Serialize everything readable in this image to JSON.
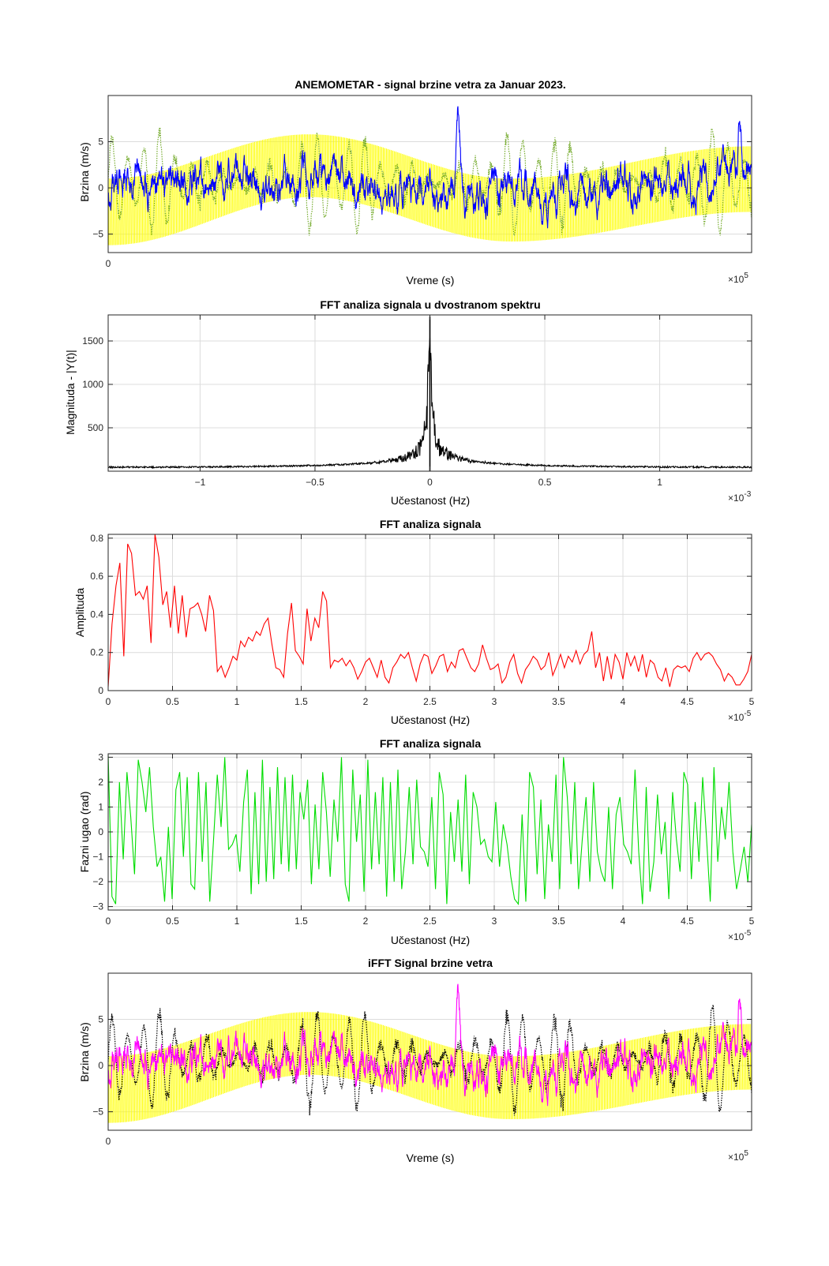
{
  "chart_data": [
    {
      "type": "line",
      "title": "ANEMOMETAR - signal brzine vetra za Januar 2023.",
      "xlabel": "Vreme (s)",
      "ylabel": "Brzina (m/s)",
      "xlim": [
        0,
        160000.0
      ],
      "ylim": [
        -7,
        10
      ],
      "xticks": [
        0,
        5,
        10,
        15
      ],
      "yticks": [
        -5,
        0,
        5
      ],
      "x_exponent": "5",
      "grid": true,
      "series": [
        {
          "role": "envelope",
          "color": "#ffff00",
          "x": [
            0,
            50000.0,
            100000.0,
            160000.0
          ],
          "upper": [
            1,
            5.8,
            1,
            4.5
          ],
          "lower": [
            -6.2,
            -1,
            -5.8,
            -2.6
          ]
        },
        {
          "role": "dotted",
          "color": "#77ac30",
          "style": "dotted",
          "amplitude": 6
        },
        {
          "role": "main",
          "color": "#0000ff",
          "peaks": [
            [
              87000.0,
              9.8
            ],
            [
              157000.0,
              9.5
            ]
          ]
        }
      ]
    },
    {
      "type": "line",
      "title": "FFT analiza signala u dvostranom spektru",
      "xlabel": "Učestanost (Hz)",
      "ylabel": "Magnituda - |Y(t)|",
      "xlim": [
        -0.0014,
        0.0014
      ],
      "ylim": [
        0,
        1800
      ],
      "xticks": [
        -1,
        -0.5,
        0,
        0.5,
        1
      ],
      "yticks": [
        500,
        1000,
        1500
      ],
      "x_exponent": "-3",
      "grid": true,
      "series": [
        {
          "color": "#000000",
          "peak": 1780,
          "baseline": 35
        }
      ]
    },
    {
      "type": "line",
      "title": "FFT analiza signala",
      "xlabel": "Učestanost (Hz)",
      "ylabel": "Amplituda",
      "xlim": [
        0,
        5e-05
      ],
      "ylim": [
        0,
        0.82
      ],
      "xticks": [
        0,
        0.5,
        1,
        1.5,
        2,
        2.5,
        3,
        3.5,
        4,
        4.5,
        5
      ],
      "yticks": [
        0,
        0.2,
        0.4,
        0.6,
        0.8
      ],
      "x_exponent": "-5",
      "grid": true,
      "series": [
        {
          "color": "#ff0000",
          "y": [
            0.02,
            0.35,
            0.55,
            0.67,
            0.18,
            0.77,
            0.72,
            0.5,
            0.52,
            0.48,
            0.55,
            0.25,
            0.82,
            0.7,
            0.45,
            0.52,
            0.33,
            0.55,
            0.3,
            0.5,
            0.28,
            0.43,
            0.44,
            0.46,
            0.4,
            0.31,
            0.5,
            0.42,
            0.1,
            0.13,
            0.07,
            0.12,
            0.18,
            0.16,
            0.26,
            0.23,
            0.28,
            0.26,
            0.31,
            0.29,
            0.35,
            0.38,
            0.24,
            0.12,
            0.11,
            0.07,
            0.3,
            0.46,
            0.21,
            0.18,
            0.14,
            0.43,
            0.26,
            0.38,
            0.33,
            0.52,
            0.47,
            0.12,
            0.16,
            0.15,
            0.17,
            0.13,
            0.16,
            0.12,
            0.06,
            0.1,
            0.15,
            0.17,
            0.12,
            0.07,
            0.16,
            0.07,
            0.04,
            0.12,
            0.15,
            0.19,
            0.17,
            0.2,
            0.12,
            0.05,
            0.14,
            0.19,
            0.18,
            0.09,
            0.13,
            0.18,
            0.19,
            0.1,
            0.15,
            0.12,
            0.21,
            0.22,
            0.17,
            0.12,
            0.1,
            0.14,
            0.24,
            0.17,
            0.11,
            0.12,
            0.14,
            0.04,
            0.07,
            0.15,
            0.19,
            0.09,
            0.04,
            0.11,
            0.14,
            0.18,
            0.16,
            0.11,
            0.13,
            0.2,
            0.08,
            0.13,
            0.19,
            0.12,
            0.18,
            0.15,
            0.21,
            0.14,
            0.19,
            0.21,
            0.31,
            0.12,
            0.2,
            0.05,
            0.18,
            0.06,
            0.19,
            0.15,
            0.06,
            0.2,
            0.13,
            0.18,
            0.1,
            0.19,
            0.07,
            0.16,
            0.14,
            0.07,
            0.05,
            0.12,
            0.02,
            0.11,
            0.13,
            0.12,
            0.13,
            0.1,
            0.17,
            0.2,
            0.16,
            0.19,
            0.2,
            0.18,
            0.14,
            0.11,
            0.05,
            0.09,
            0.07,
            0.03,
            0.03,
            0.06,
            0.1,
            0.19
          ]
        }
      ]
    },
    {
      "type": "line",
      "title": "FFT analiza signala",
      "xlabel": "Učestanost (Hz)",
      "ylabel": "Fazni ugao (rad)",
      "xlim": [
        0,
        5e-05
      ],
      "ylim": [
        -3.14,
        3.14
      ],
      "xticks": [
        0,
        0.5,
        1,
        1.5,
        2,
        2.5,
        3,
        3.5,
        4,
        4.5,
        5
      ],
      "yticks": [
        -3,
        -2,
        -1,
        0,
        1,
        2,
        3
      ],
      "x_exponent": "-5",
      "grid": true,
      "series": [
        {
          "color": "#00dd00",
          "y": [
            3.1,
            -2.6,
            -2.9,
            2.0,
            -1.1,
            2.4,
            0.6,
            -1.7,
            2.9,
            2.0,
            0.8,
            2.6,
            0.2,
            -1.4,
            -1.0,
            -2.8,
            0.2,
            -2.7,
            1.7,
            2.4,
            -1.0,
            2.2,
            -2.1,
            -2.3,
            2.4,
            -1.2,
            2.0,
            -2.8,
            -0.3,
            2.3,
            0.2,
            3.0,
            -0.7,
            -0.5,
            -0.1,
            -1.6,
            1.2,
            2.5,
            -2.5,
            1.6,
            -2.1,
            2.9,
            -2.0,
            1.8,
            -1.9,
            2.6,
            -1.3,
            2.2,
            -1.6,
            2.3,
            -1.5,
            1.6,
            0.5,
            2.1,
            -2.1,
            1.1,
            -1.5,
            2.4,
            0.8,
            -1.8,
            1.3,
            -0.4,
            3.0,
            -2.1,
            -2.8,
            2.5,
            -0.4,
            1.5,
            -2.4,
            2.9,
            -1.5,
            1.6,
            -1.3,
            2.2,
            -2.6,
            2.0,
            -2.0,
            2.5,
            -2.3,
            -0.8,
            1.8,
            -1.3,
            2.1,
            -0.6,
            -0.8,
            -1.4,
            1.4,
            -2.3,
            2.4,
            1.5,
            -2.9,
            0.8,
            -1.2,
            1.3,
            -1.6,
            2.3,
            -2.1,
            1.6,
            1.0,
            -0.5,
            -0.3,
            -1.0,
            -1.2,
            1.2,
            -1.4,
            0.3,
            -0.5,
            -1.8,
            -2.7,
            -2.9,
            0.7,
            -2.8,
            2.4,
            1.8,
            -1.7,
            1.3,
            -2.7,
            0.3,
            -1.2,
            2.3,
            -2.3,
            3.0,
            1.4,
            -1.3,
            2.0,
            -2.3,
            -0.3,
            1.4,
            -2.0,
            2.0,
            -0.8,
            -1.6,
            -2.0,
            1.0,
            -2.3,
            0.7,
            1.4,
            -0.5,
            -0.8,
            -1.3,
            2.5,
            -0.8,
            -2.9,
            1.8,
            -2.4,
            -1.2,
            1.5,
            -0.9,
            0.4,
            -2.7,
            1.6,
            -0.3,
            -1.6,
            2.4,
            1.9,
            -1.9,
            1.2,
            -1.2,
            2.2,
            -0.2,
            -2.8,
            2.6,
            -1.2,
            1.0,
            -0.3,
            2.0,
            -0.8,
            -2.3,
            -1.5,
            -0.6,
            -2.0,
            0.3
          ]
        }
      ]
    },
    {
      "type": "line",
      "title": "iFFT Signal brzine vetra",
      "xlabel": "Vreme (s)",
      "ylabel": "Brzina (m/s)",
      "xlim": [
        0,
        160000.0
      ],
      "ylim": [
        -7,
        10
      ],
      "xticks": [
        0,
        5,
        10,
        15
      ],
      "yticks": [
        -5,
        0,
        5
      ],
      "x_exponent": "5",
      "grid": true,
      "series": [
        {
          "role": "envelope",
          "color": "#ffff00",
          "x": [
            0,
            50000.0,
            100000.0,
            160000.0
          ],
          "upper": [
            1,
            5.8,
            1,
            4.5
          ],
          "lower": [
            -6.2,
            -1,
            -5.8,
            -2.6
          ]
        },
        {
          "role": "dotted",
          "color": "#000000",
          "style": "dotted",
          "amplitude": 6
        },
        {
          "role": "main",
          "color": "#ff00ff",
          "peaks": [
            [
              87000.0,
              9.8
            ],
            [
              157000.0,
              9.5
            ]
          ]
        }
      ]
    }
  ]
}
